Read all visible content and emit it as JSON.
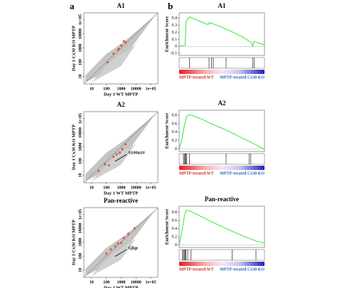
{
  "panel_labels": [
    "a",
    "b"
  ],
  "chart_data": [
    {
      "type": "scatter",
      "title": "A1",
      "xlabel": "Day 1 WT MPTP",
      "ylabel": "Day 1 Cx30 KO MPTP",
      "log_scale": true,
      "xlim": [
        3,
        300000
      ],
      "ylim": [
        3,
        300000
      ],
      "xticks": [
        10,
        100,
        1000,
        10000,
        {
          "value": 100000,
          "label": "1e+05"
        }
      ],
      "yticks": [
        10,
        100,
        1000,
        10000,
        {
          "value": 100000,
          "label": "1e+05"
        }
      ],
      "x": [
        120,
        300,
        600,
        1000,
        1500,
        700,
        2000
      ],
      "series": [
        {
          "color": "#e8501e",
          "values": [
            100,
            400,
            700,
            1500,
            3000,
            900,
            2500
          ]
        }
      ]
    },
    {
      "type": "line",
      "title": "A1",
      "ylabel": "Enrichment Score",
      "xlim": [
        0,
        100
      ],
      "ylim": [
        -0.13,
        0.48
      ],
      "yticks": [
        -0.1,
        0,
        0.1,
        0.2,
        0.3,
        0.4
      ],
      "x": [
        0,
        7,
        8,
        12,
        14,
        20,
        30,
        34,
        35,
        45,
        60,
        75,
        85,
        86,
        88,
        100
      ],
      "series": [
        {
          "color": "#33e633",
          "values": [
            0,
            0.02,
            0.36,
            0.42,
            0.41,
            0.38,
            0.33,
            0.31,
            0.34,
            0.3,
            0.22,
            0.13,
            0.05,
            0,
            0.07,
            0.02
          ]
        }
      ],
      "hits": [
        12,
        35,
        38,
        40,
        55,
        86,
        88
      ],
      "group_labels": [
        "MPTP-treated WT",
        "MPTP-treated Cx30 KO"
      ]
    },
    {
      "type": "scatter",
      "title": "A2",
      "xlabel": "Day 1 WT MPTP",
      "ylabel": "Day 1 Cx30 KO MPTP",
      "log_scale": true,
      "xlim": [
        3,
        300000
      ],
      "ylim": [
        3,
        300000
      ],
      "xticks": [
        10,
        100,
        1000,
        10000,
        {
          "value": 100000,
          "label": "1e+05"
        }
      ],
      "yticks": [
        10,
        100,
        1000,
        10000,
        {
          "value": 100000,
          "label": "1e+05"
        }
      ],
      "x": [
        30,
        80,
        150,
        300,
        500,
        800,
        1200,
        2000
      ],
      "series": [
        {
          "color": "#e8501e",
          "values": [
            20,
            60,
            50,
            200,
            300,
            400,
            700,
            1500
          ]
        }
      ],
      "annotation": "S100a10"
    },
    {
      "type": "line",
      "title": "A2",
      "ylabel": "Enrichment Score",
      "xlim": [
        0,
        100
      ],
      "ylim": [
        -0.06,
        0.92
      ],
      "yticks": [
        0,
        0.2,
        0.4,
        0.6,
        0.8
      ],
      "x": [
        0,
        3,
        6,
        9,
        12,
        15,
        25,
        40,
        55,
        70,
        82,
        90,
        95,
        100
      ],
      "series": [
        {
          "color": "#33e633",
          "values": [
            0,
            0.2,
            0.55,
            0.78,
            0.81,
            0.8,
            0.72,
            0.58,
            0.45,
            0.3,
            0.18,
            0.1,
            0.04,
            0
          ]
        }
      ],
      "hits": [
        5,
        6,
        7,
        8,
        9,
        12,
        55,
        82,
        84
      ],
      "group_labels": [
        "MPTP-treated WT",
        "MPTP-treated Cx30 KO"
      ]
    },
    {
      "type": "scatter",
      "title": "Pan-reactive",
      "xlabel": "Day 1 WT MPTP",
      "ylabel": "Day 1 Cx30 KO MPTP",
      "log_scale": true,
      "xlim": [
        3,
        300000
      ],
      "ylim": [
        3,
        300000
      ],
      "xticks": [
        10,
        100,
        1000,
        10000,
        {
          "value": 100000,
          "label": "1e+05"
        }
      ],
      "yticks": [
        10,
        100,
        1000,
        10000,
        {
          "value": 100000,
          "label": "1e+05"
        }
      ],
      "x": [
        100,
        200,
        400,
        600,
        1000,
        1500,
        3000,
        8000
      ],
      "series": [
        {
          "color": "#e8501e",
          "values": [
            150,
            300,
            500,
            800,
            900,
            2000,
            4000,
            10000
          ]
        }
      ],
      "annotation": "Gfap"
    },
    {
      "type": "line",
      "title": "Pan-reactive",
      "ylabel": "Enrichment Score",
      "xlim": [
        0,
        100
      ],
      "ylim": [
        -0.06,
        0.95
      ],
      "yticks": [
        0,
        0.2,
        0.4,
        0.6,
        0.8
      ],
      "x": [
        0,
        3,
        6,
        8,
        12,
        20,
        35,
        50,
        62,
        75,
        90,
        100
      ],
      "series": [
        {
          "color": "#33e633",
          "values": [
            0,
            0.3,
            0.7,
            0.85,
            0.84,
            0.76,
            0.6,
            0.45,
            0.34,
            0.22,
            0.1,
            0.05
          ]
        }
      ],
      "hits": [
        4,
        5,
        6,
        7,
        8,
        10,
        14,
        62,
        90
      ],
      "group_labels": [
        "MPTP-treated WT",
        "MPTP-treated Cx30 KO"
      ]
    }
  ]
}
